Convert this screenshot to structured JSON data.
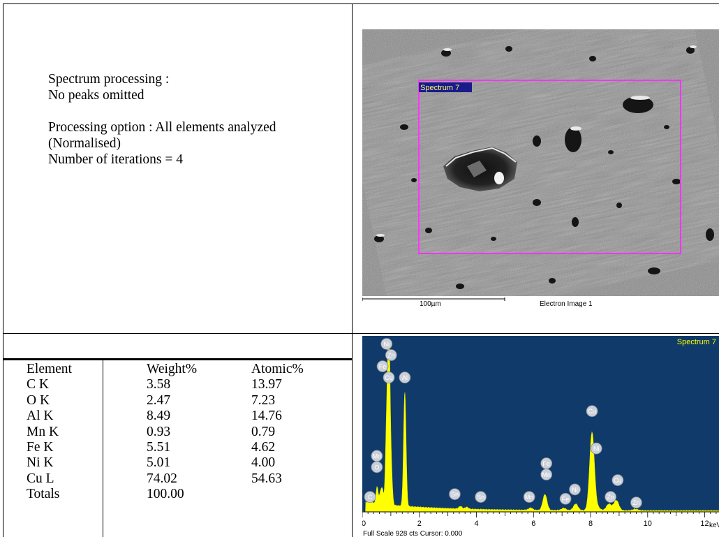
{
  "processing": {
    "line1": "Spectrum processing :",
    "line2": "No peaks omitted",
    "line3": "Processing option : All elements analyzed",
    "line4": "(Normalised)",
    "line5": "Number of iterations = 4"
  },
  "results": {
    "headers": [
      "Element",
      "Weight%",
      "Atomic%"
    ],
    "rows": [
      [
        "C K",
        "3.58",
        "13.97"
      ],
      [
        "O K",
        "2.47",
        "7.23"
      ],
      [
        "Al K",
        "8.49",
        "14.76"
      ],
      [
        "Mn K",
        "0.93",
        "0.79"
      ],
      [
        "Fe K",
        "5.51",
        "4.62"
      ],
      [
        "Ni K",
        "5.01",
        "4.00"
      ],
      [
        "Cu L",
        "74.02",
        "54.63"
      ]
    ],
    "totals": [
      "Totals",
      "100.00"
    ]
  },
  "electron_image": {
    "region_label": "Spectrum 7",
    "scale_bar_label": "100µm",
    "caption": "Electron Image 1"
  },
  "chart_data": {
    "type": "line",
    "title": "Spectrum 7",
    "xlabel": "keV",
    "footer": "Full Scale 928 cts Cursor: 0.000",
    "xlim": [
      0,
      12.5
    ],
    "ylim": [
      0,
      928
    ],
    "x_ticks": [
      0,
      2,
      4,
      6,
      8,
      10,
      12
    ],
    "tick_labels": [
      "0",
      "2",
      "4",
      "6",
      "8",
      "10",
      "12"
    ],
    "background_color": "#0f3a6a",
    "fill_color": "#ffff00",
    "peaks": [
      {
        "element": "C",
        "x": 0.28,
        "y": 60
      },
      {
        "element": "O",
        "x": 0.52,
        "y": 90
      },
      {
        "element": "Mn",
        "x": 0.64,
        "y": 60
      },
      {
        "element": "Fe",
        "x": 0.71,
        "y": 70
      },
      {
        "element": "Ni",
        "x": 0.85,
        "y": 400
      },
      {
        "element": "Cu",
        "x": 0.93,
        "y": 928
      },
      {
        "element": "Zn",
        "x": 1.01,
        "y": 200
      },
      {
        "element": "Al",
        "x": 1.49,
        "y": 610
      },
      {
        "element": "Sn",
        "x": 3.44,
        "y": 14
      },
      {
        "element": "Sn",
        "x": 3.66,
        "y": 10
      },
      {
        "element": "Mn",
        "x": 5.9,
        "y": 12
      },
      {
        "element": "Fe",
        "x": 6.4,
        "y": 85
      },
      {
        "element": "Ni",
        "x": 7.48,
        "y": 35
      },
      {
        "element": "Fe",
        "x": 7.06,
        "y": 12
      },
      {
        "element": "Cu",
        "x": 8.05,
        "y": 420
      },
      {
        "element": "Cu",
        "x": 8.9,
        "y": 55
      },
      {
        "element": "Ni",
        "x": 8.26,
        "y": 14
      },
      {
        "element": "Zn",
        "x": 8.64,
        "y": 35
      },
      {
        "element": "Zn",
        "x": 9.57,
        "y": 8
      }
    ],
    "labels": [
      {
        "text": "Ni",
        "x": 0.85,
        "y": 900
      },
      {
        "text": "Zn",
        "x": 1.01,
        "y": 840
      },
      {
        "text": "Fe",
        "x": 0.71,
        "y": 780
      },
      {
        "text": "Cu",
        "x": 0.93,
        "y": 720
      },
      {
        "text": "Al",
        "x": 1.49,
        "y": 720
      },
      {
        "text": "Cu",
        "x": 8.05,
        "y": 540
      },
      {
        "text": "Ni",
        "x": 8.2,
        "y": 340
      },
      {
        "text": "Mn",
        "x": 0.51,
        "y": 300
      },
      {
        "text": "O",
        "x": 0.51,
        "y": 240
      },
      {
        "text": "Fe",
        "x": 6.45,
        "y": 260
      },
      {
        "text": "Mn",
        "x": 6.45,
        "y": 200
      },
      {
        "text": "Cu",
        "x": 8.95,
        "y": 170
      },
      {
        "text": "C",
        "x": 0.27,
        "y": 80
      },
      {
        "text": "Sn",
        "x": 3.24,
        "y": 95
      },
      {
        "text": "Sn",
        "x": 4.15,
        "y": 80
      },
      {
        "text": "Mn",
        "x": 5.85,
        "y": 80
      },
      {
        "text": "Fe",
        "x": 7.12,
        "y": 70
      },
      {
        "text": "Ni",
        "x": 7.45,
        "y": 120
      },
      {
        "text": "Zn",
        "x": 8.7,
        "y": 80
      },
      {
        "text": "Zn",
        "x": 9.6,
        "y": 50
      }
    ]
  }
}
